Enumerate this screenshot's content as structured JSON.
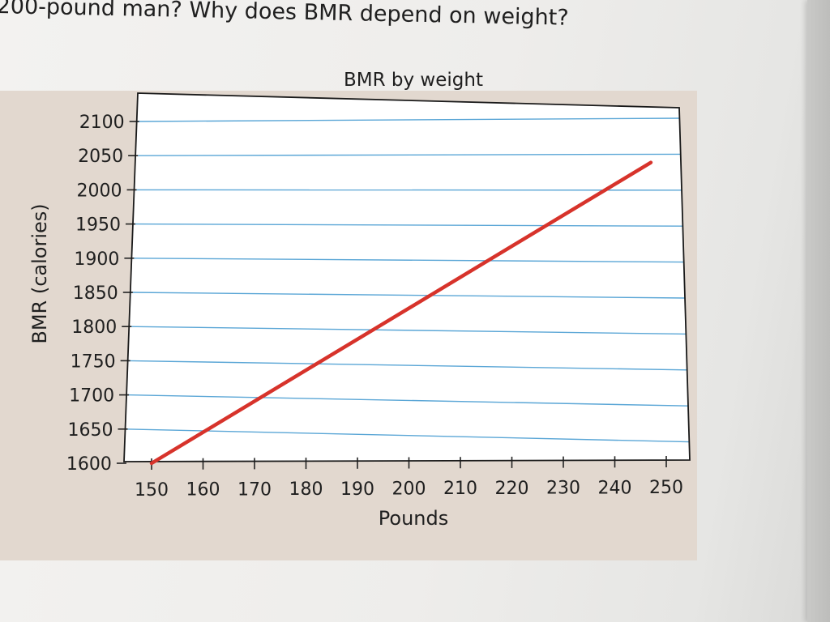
{
  "question_text": "200-pound man? Why does BMR depend on weight?",
  "colors": {
    "line": "#d7332b",
    "grid": "#5aa6d6",
    "plot_background": "#ffffff",
    "panel_background": "#e2d8cf"
  },
  "chart_data": {
    "type": "line",
    "title": "BMR by weight",
    "xlabel": "Pounds",
    "ylabel": "BMR (calories)",
    "xlim": [
      150,
      250
    ],
    "ylim": [
      1600,
      2100
    ],
    "x_ticks": [
      150,
      160,
      170,
      180,
      190,
      200,
      210,
      220,
      230,
      240,
      250
    ],
    "y_ticks": [
      1600,
      1650,
      1700,
      1750,
      1800,
      1850,
      1900,
      1950,
      2000,
      2050,
      2100
    ],
    "grid": "horizontal",
    "legend": "none",
    "series": [
      {
        "x": [
          150,
          247
        ],
        "y": [
          1600,
          2040
        ]
      }
    ]
  }
}
